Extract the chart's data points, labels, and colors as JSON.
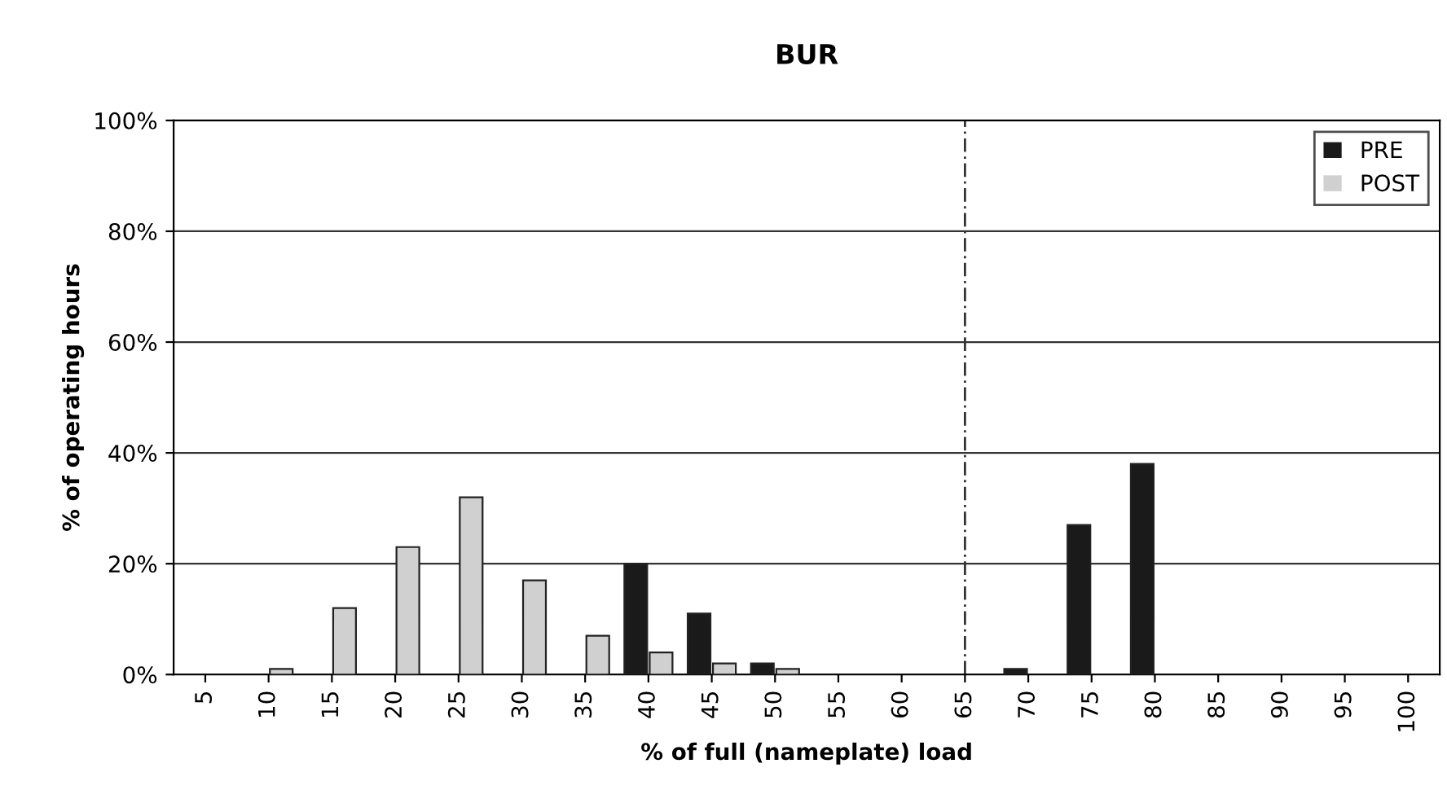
{
  "chart_data": {
    "type": "bar",
    "title": "BUR",
    "xlabel": "% of full (nameplate) load",
    "ylabel": "% of operating hours",
    "categories": [
      "5",
      "10",
      "15",
      "20",
      "25",
      "30",
      "35",
      "40",
      "45",
      "50",
      "55",
      "60",
      "65",
      "70",
      "75",
      "80",
      "85",
      "90",
      "95",
      "100"
    ],
    "series": [
      {
        "name": "PRE",
        "color": "#1a1a1a",
        "values": [
          0,
          0,
          0,
          0,
          0,
          0,
          0,
          20,
          11,
          2,
          0,
          0,
          0,
          1,
          27,
          38,
          0,
          0,
          0,
          0
        ]
      },
      {
        "name": "POST",
        "color": "#d0d0d0",
        "values": [
          0,
          1,
          12,
          23,
          32,
          17,
          7,
          4,
          2,
          1,
          0,
          0,
          0,
          0,
          0,
          0,
          0,
          0,
          0,
          0
        ]
      }
    ],
    "ylim": [
      0,
      100
    ],
    "yticks": [
      {
        "value": 0,
        "label": "0%"
      },
      {
        "value": 20,
        "label": "20%"
      },
      {
        "value": 40,
        "label": "40%"
      },
      {
        "value": 60,
        "label": "60%"
      },
      {
        "value": 80,
        "label": "80%"
      },
      {
        "value": 100,
        "label": "100%"
      }
    ],
    "grid": "y",
    "legend": "top right",
    "ref_lines": [
      {
        "axis": "x",
        "value": "65",
        "color": "#333333",
        "line_style": "dashed"
      }
    ]
  }
}
